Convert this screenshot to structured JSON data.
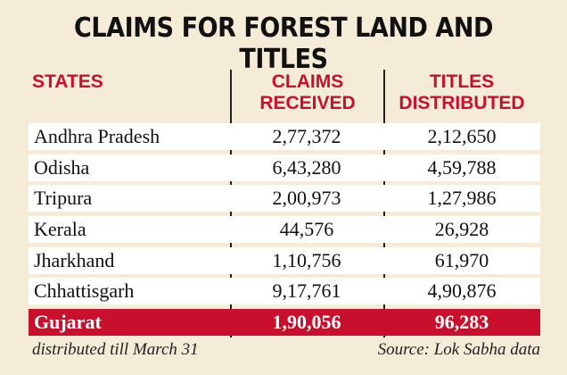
{
  "title": "CLAIMS FOR FOREST LAND AND TITLES",
  "headers": {
    "states": "STATES",
    "claims_line1": "CLAIMS",
    "claims_line2": "RECEIVED",
    "titles_line1": "TITLES",
    "titles_line2": "DISTRIBUTED"
  },
  "rows": [
    {
      "state": "Andhra Pradesh",
      "claims": "2,77,372",
      "titles": "2,12,650"
    },
    {
      "state": "Odisha",
      "claims": "6,43,280",
      "titles": "4,59,788"
    },
    {
      "state": "Tripura",
      "claims": "2,00,973",
      "titles": "1,27,986"
    },
    {
      "state": "Kerala",
      "claims": "44,576",
      "titles": "26,928"
    },
    {
      "state": "Jharkhand",
      "claims": "1,10,756",
      "titles": "61,970"
    },
    {
      "state": "Chhattisgarh",
      "claims": "9,17,761",
      "titles": "4,90,876"
    },
    {
      "state": "Gujarat",
      "claims": "1,90,056",
      "titles": "96,283",
      "highlight": true
    }
  ],
  "footer": {
    "left": "distributed till March 31",
    "right": "Source: Lok Sabha data"
  },
  "colors": {
    "accent": "#c8102e",
    "background": "#f5ecd8",
    "row": "#ffffff"
  }
}
